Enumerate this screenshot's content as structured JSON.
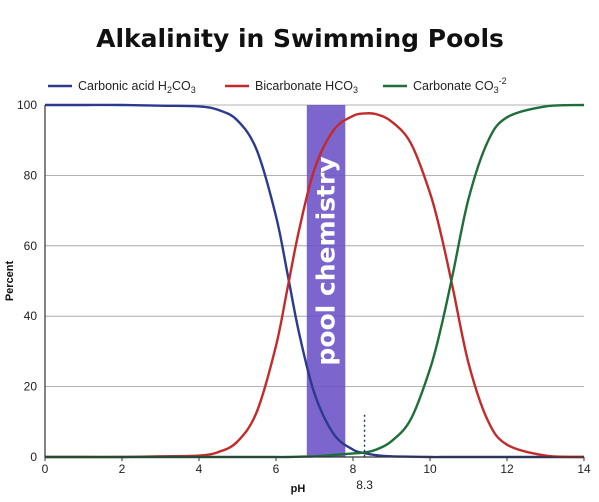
{
  "chart_data": {
    "type": "line",
    "title": "Alkalinity in Swimming Pools",
    "xlabel": "pH",
    "ylabel": "Percent",
    "xlim": [
      0,
      14
    ],
    "ylim": [
      0,
      100
    ],
    "x_ticks": [
      0,
      2,
      4,
      6,
      8,
      10,
      12,
      14
    ],
    "y_ticks": [
      0,
      20,
      40,
      60,
      80,
      100
    ],
    "grid": "horizontal",
    "legend_position": "top",
    "x": [
      0,
      1,
      2,
      3,
      4,
      4.5,
      5,
      5.5,
      6,
      6.3,
      6.6,
      7,
      7.5,
      8,
      8.3,
      8.6,
      9,
      9.5,
      10,
      10.3,
      10.6,
      11,
      11.5,
      12,
      13,
      14
    ],
    "series": [
      {
        "name": "Carbonic acid H2CO3",
        "name_base": "Carbonic acid H",
        "name_parts": [
          "2",
          "CO",
          "3"
        ],
        "color": "#2b3a8e",
        "values": [
          100,
          100,
          100,
          99.8,
          99.6,
          98.6,
          95.6,
          87.2,
          68.4,
          52.0,
          35.2,
          18.0,
          6.5,
          2.1,
          1.1,
          0.5,
          0.2,
          0.1,
          0,
          0,
          0,
          0,
          0,
          0,
          0,
          0
        ]
      },
      {
        "name": "Bicarbonate HCO3",
        "name_base": "Bicarbonate HCO",
        "name_parts": [
          "3"
        ],
        "color": "#c42a2a",
        "values": [
          0,
          0,
          0,
          0.2,
          0.4,
          1.4,
          4.4,
          12.8,
          31.6,
          48.0,
          64.5,
          81.8,
          92.9,
          96.9,
          97.6,
          97.4,
          95.3,
          89.2,
          75.0,
          62.6,
          47.6,
          26.7,
          10.4,
          3.5,
          0.4,
          0
        ]
      },
      {
        "name": "Carbonate CO3-2",
        "name_base": "Carbonate CO",
        "name_parts": [
          "3",
          "-2"
        ],
        "color": "#1e6e3a",
        "values": [
          0,
          0,
          0,
          0,
          0,
          0,
          0,
          0,
          0,
          0,
          0.1,
          0.2,
          0.6,
          1.0,
          1.3,
          2.1,
          4.5,
          10.7,
          25.0,
          37.4,
          52.4,
          73.3,
          89.6,
          96.5,
          99.6,
          100
        ]
      }
    ],
    "annotations": [
      {
        "type": "band",
        "x_start": 6.8,
        "x_end": 7.8,
        "text": "pool chemistry",
        "color": "#6a50c6"
      },
      {
        "type": "vline",
        "x": 8.3,
        "text": "8.3",
        "dashed": true,
        "y_top": 12
      }
    ]
  }
}
